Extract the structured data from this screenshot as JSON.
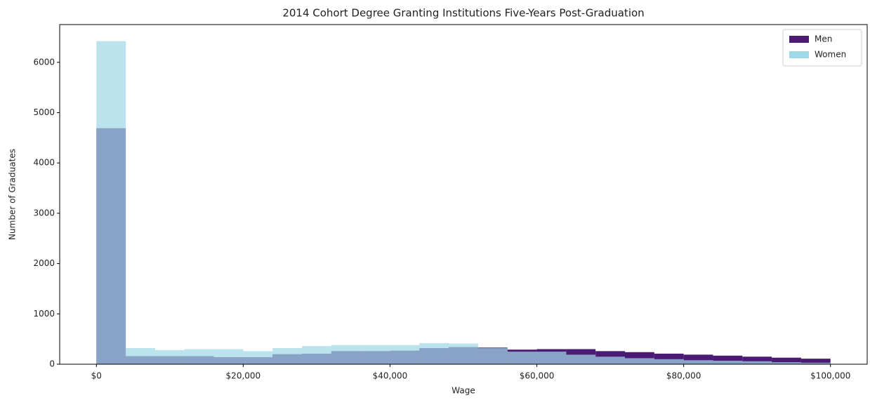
{
  "chart_data": {
    "type": "histogram",
    "title": "2014 Cohort Degree Granting Institutions Five-Years Post-Graduation",
    "x_label": "Wage",
    "y_label": "Number of Graduates",
    "bins": [
      0,
      4000,
      8000,
      12000,
      16000,
      20000,
      24000,
      28000,
      32000,
      36000,
      40000,
      44000,
      48000,
      52000,
      56000,
      60000,
      64000,
      68000,
      72000,
      76000,
      80000,
      84000,
      88000,
      92000,
      96000,
      100000
    ],
    "series": [
      {
        "name": "Men",
        "color": "#4b1a72",
        "values": [
          4690,
          160,
          160,
          160,
          140,
          140,
          200,
          210,
          260,
          260,
          270,
          320,
          340,
          330,
          290,
          300,
          300,
          260,
          240,
          210,
          190,
          170,
          150,
          130,
          110
        ]
      },
      {
        "name": "Women",
        "color": "#9fd8e6",
        "values": [
          6420,
          320,
          280,
          300,
          300,
          260,
          320,
          360,
          380,
          380,
          380,
          420,
          410,
          320,
          250,
          250,
          190,
          150,
          120,
          100,
          80,
          70,
          60,
          40,
          30
        ]
      }
    ],
    "xlim": [
      -5000,
      105000
    ],
    "ylim": [
      0,
      6750
    ],
    "xticks": [
      {
        "value": 0,
        "label": "$0"
      },
      {
        "value": 20000,
        "label": "$20,000"
      },
      {
        "value": 40000,
        "label": "$40,000"
      },
      {
        "value": 60000,
        "label": "$60,000"
      },
      {
        "value": 80000,
        "label": "$80,000"
      },
      {
        "value": 100000,
        "label": "$100,000"
      }
    ],
    "yticks": [
      0,
      1000,
      2000,
      3000,
      4000,
      5000,
      6000
    ],
    "legend": "upper right"
  }
}
